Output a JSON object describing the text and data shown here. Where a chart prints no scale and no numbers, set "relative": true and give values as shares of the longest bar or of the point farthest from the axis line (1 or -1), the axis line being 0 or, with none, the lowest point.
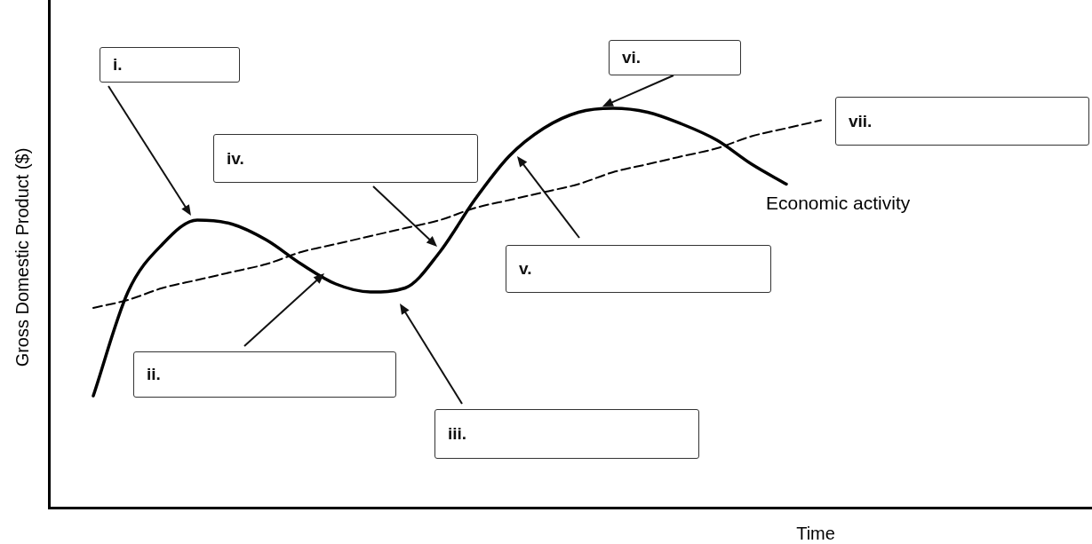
{
  "chart_data": {
    "type": "line",
    "relative": true,
    "xlabel": "Time",
    "ylabel": "Gross Domestic Product ($)",
    "categories": [
      null,
      null,
      null,
      null,
      null,
      null,
      null,
      null,
      null,
      null,
      null,
      null,
      null,
      null,
      null,
      null,
      null,
      null,
      null,
      null,
      null,
      null,
      null
    ],
    "series": [
      {
        "name": "Economic activity",
        "color": "#000000",
        "line_style": "solid",
        "values": [
          null,
          0.28,
          0.54,
          0.66,
          0.72,
          0.71,
          0.67,
          0.61,
          0.56,
          0.54,
          0.55,
          0.64,
          0.77,
          0.88,
          0.95,
          0.99,
          1,
          0.99,
          0.96,
          0.92,
          0.86,
          0.81,
          null
        ]
      },
      {
        "color": "#000000",
        "line_style": "dashed",
        "values": [
          null,
          0.5,
          0.52,
          0.55,
          0.57,
          0.59,
          0.61,
          0.64,
          0.66,
          0.68,
          0.7,
          0.72,
          0.75,
          0.77,
          0.79,
          0.81,
          0.84,
          0.86,
          0.88,
          0.9,
          0.93,
          0.95,
          0.97
        ]
      }
    ],
    "annotations": [
      "i.",
      "ii.",
      "iii.",
      "iv.",
      "v.",
      "vi.",
      "vii."
    ],
    "marker": "none",
    "grid": false,
    "legend": false
  }
}
